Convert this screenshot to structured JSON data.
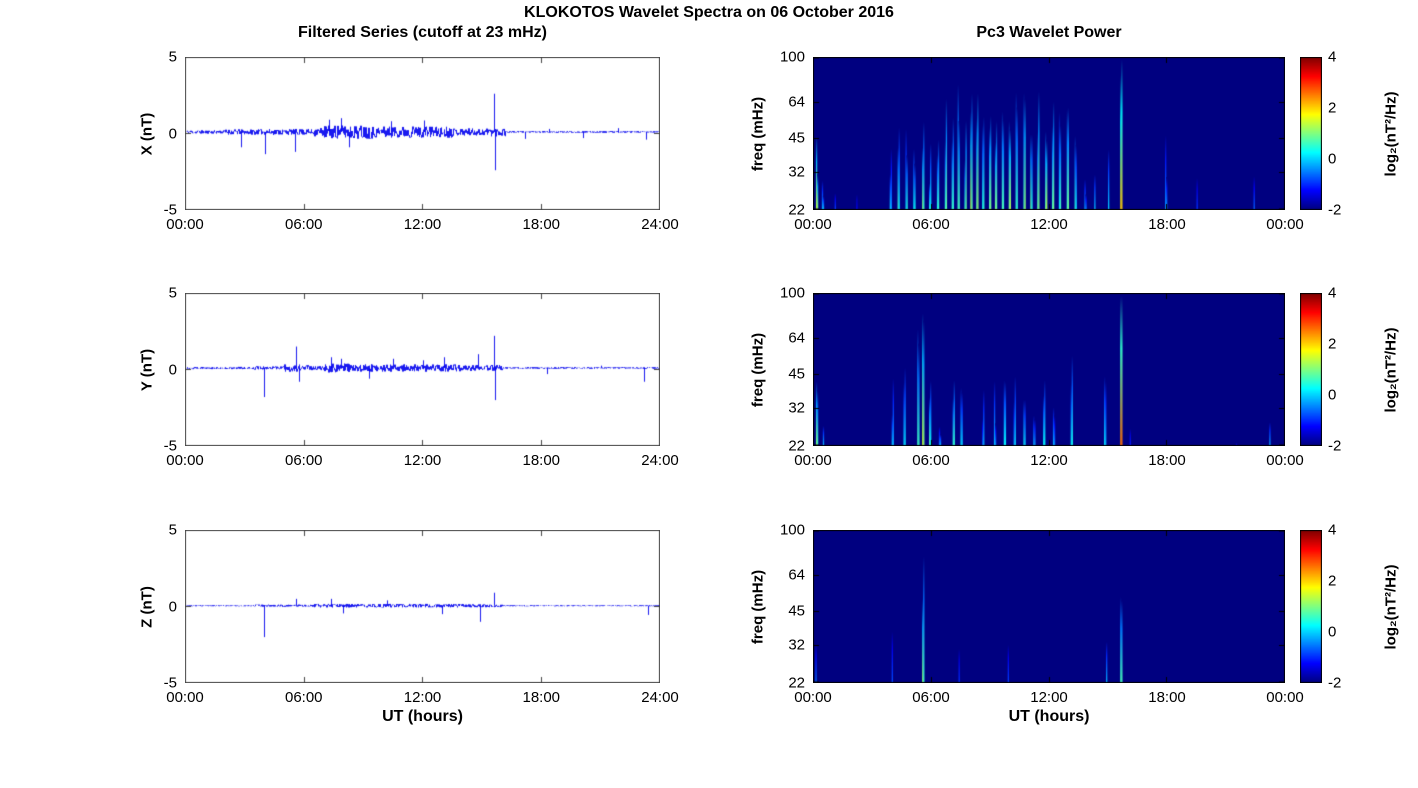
{
  "figure": {
    "title": "KLOKOTOS Wavelet Spectra on 06 October 2016",
    "xlabel": "UT (hours)"
  },
  "colorbar": {
    "label": "log₂(nT²/Hz)",
    "ticks": [
      "4",
      "2",
      "0",
      "-2"
    ],
    "vmin": -2,
    "vmax": 4
  },
  "chart_data": [
    {
      "id": "ts-x",
      "type": "line",
      "title": "Filtered Series (cutoff at 23 mHz)",
      "ylabel": "X (nT)",
      "ylim": [
        -5,
        5
      ],
      "yticks": [
        "5",
        "0",
        "-5"
      ],
      "xlim_hours": [
        0,
        24
      ],
      "xticks": [
        "00:00",
        "06:00",
        "12:00",
        "18:00",
        "24:00"
      ],
      "line_color": "#0000ee",
      "baseline": 0.1,
      "noise_envelope": [
        {
          "t0": 0,
          "t1": 2,
          "amp": 0.12
        },
        {
          "t0": 2,
          "t1": 4,
          "amp": 0.18
        },
        {
          "t0": 4,
          "t1": 6.5,
          "amp": 0.2
        },
        {
          "t0": 6.5,
          "t1": 7,
          "amp": 0.3
        },
        {
          "t0": 7,
          "t1": 9.5,
          "amp": 0.45
        },
        {
          "t0": 9.5,
          "t1": 13.5,
          "amp": 0.38
        },
        {
          "t0": 13.5,
          "t1": 15.3,
          "amp": 0.25
        },
        {
          "t0": 15.3,
          "t1": 16.2,
          "amp": 0.3
        },
        {
          "t0": 16.2,
          "t1": 24,
          "amp": 0.06
        }
      ],
      "spikes": [
        {
          "t": 2.85,
          "v": -0.9
        },
        {
          "t": 4.05,
          "v": -1.35
        },
        {
          "t": 5.55,
          "v": -1.2
        },
        {
          "t": 7.3,
          "v": 0.9
        },
        {
          "t": 7.9,
          "v": 1.0
        },
        {
          "t": 8.3,
          "v": -0.9
        },
        {
          "t": 10.4,
          "v": 0.8
        },
        {
          "t": 12.1,
          "v": 0.85
        },
        {
          "t": 15.62,
          "v": 2.6
        },
        {
          "t": 15.68,
          "v": -2.4
        },
        {
          "t": 17.2,
          "v": -0.35
        },
        {
          "t": 18.4,
          "v": 0.3
        },
        {
          "t": 20.1,
          "v": -0.3
        },
        {
          "t": 21.9,
          "v": 0.35
        },
        {
          "t": 23.3,
          "v": -0.4
        }
      ]
    },
    {
      "id": "ts-y",
      "type": "line",
      "title": "",
      "ylabel": "Y (nT)",
      "ylim": [
        -5,
        5
      ],
      "yticks": [
        "5",
        "0",
        "-5"
      ],
      "xlim_hours": [
        0,
        24
      ],
      "xticks": [
        "00:00",
        "06:00",
        "12:00",
        "18:00",
        "24:00"
      ],
      "line_color": "#0000ee",
      "baseline": 0.1,
      "noise_envelope": [
        {
          "t0": 0,
          "t1": 3.5,
          "amp": 0.08
        },
        {
          "t0": 3.5,
          "t1": 5,
          "amp": 0.12
        },
        {
          "t0": 5,
          "t1": 6.2,
          "amp": 0.25
        },
        {
          "t0": 6.2,
          "t1": 7,
          "amp": 0.15
        },
        {
          "t0": 7,
          "t1": 8.5,
          "amp": 0.3
        },
        {
          "t0": 8.5,
          "t1": 14,
          "amp": 0.25
        },
        {
          "t0": 14,
          "t1": 16,
          "amp": 0.2
        },
        {
          "t0": 16,
          "t1": 24,
          "amp": 0.06
        }
      ],
      "spikes": [
        {
          "t": 4.0,
          "v": -1.8
        },
        {
          "t": 5.6,
          "v": 1.5
        },
        {
          "t": 5.75,
          "v": -0.8
        },
        {
          "t": 7.4,
          "v": 0.8
        },
        {
          "t": 7.9,
          "v": 0.7
        },
        {
          "t": 9.3,
          "v": -0.6
        },
        {
          "t": 10.5,
          "v": 0.7
        },
        {
          "t": 12.0,
          "v": 0.6
        },
        {
          "t": 13.1,
          "v": 0.8
        },
        {
          "t": 14.8,
          "v": 1.0
        },
        {
          "t": 15.62,
          "v": 2.2
        },
        {
          "t": 15.68,
          "v": -2.0
        },
        {
          "t": 18.3,
          "v": -0.3
        },
        {
          "t": 21.0,
          "v": 0.25
        },
        {
          "t": 23.2,
          "v": -0.8
        }
      ]
    },
    {
      "id": "ts-z",
      "type": "line",
      "title": "",
      "ylabel": "Z (nT)",
      "ylim": [
        -5,
        5
      ],
      "yticks": [
        "5",
        "0",
        "-5"
      ],
      "xlim_hours": [
        0,
        24
      ],
      "xticks": [
        "00:00",
        "06:00",
        "12:00",
        "18:00",
        "24:00"
      ],
      "line_color": "#0000ee",
      "baseline": 0.05,
      "noise_envelope": [
        {
          "t0": 0,
          "t1": 3.5,
          "amp": 0.04
        },
        {
          "t0": 3.5,
          "t1": 6.5,
          "amp": 0.08
        },
        {
          "t0": 6.5,
          "t1": 14.5,
          "amp": 0.12
        },
        {
          "t0": 14.5,
          "t1": 16,
          "amp": 0.1
        },
        {
          "t0": 16,
          "t1": 24,
          "amp": 0.04
        }
      ],
      "spikes": [
        {
          "t": 4.0,
          "v": -2.0
        },
        {
          "t": 5.6,
          "v": 0.5
        },
        {
          "t": 7.4,
          "v": 0.5
        },
        {
          "t": 8.0,
          "v": -0.45
        },
        {
          "t": 10.2,
          "v": 0.4
        },
        {
          "t": 13.0,
          "v": -0.5
        },
        {
          "t": 14.9,
          "v": -1.0
        },
        {
          "t": 15.62,
          "v": 0.9
        },
        {
          "t": 23.4,
          "v": -0.55
        }
      ]
    },
    {
      "id": "sp-x",
      "type": "heatmap",
      "title": "Pc3 Wavelet Power",
      "ylabel": "freq (mHz)",
      "flim": [
        22,
        100
      ],
      "yticks": [
        "100",
        "64",
        "45",
        "32",
        "22"
      ],
      "xlim_hours": [
        0,
        24
      ],
      "xticks": [
        "00:00",
        "06:00",
        "12:00",
        "18:00",
        "00:00"
      ],
      "clim": [
        -2,
        4
      ],
      "background_power": -2,
      "events": [
        {
          "t": 0.15,
          "fmax": 40,
          "p": 1.6,
          "w": 0.1
        },
        {
          "t": 0.45,
          "fmax": 30,
          "p": 0.3,
          "w": 0.08
        },
        {
          "t": 1.1,
          "fmax": 26,
          "p": -0.5,
          "w": 0.06
        },
        {
          "t": 2.2,
          "fmax": 25,
          "p": -0.8,
          "w": 0.06
        },
        {
          "t": 3.9,
          "fmax": 34,
          "p": 0.2,
          "w": 0.08
        },
        {
          "t": 4.3,
          "fmax": 45,
          "p": 0.8,
          "w": 0.1
        },
        {
          "t": 4.7,
          "fmax": 38,
          "p": 0.5,
          "w": 0.08
        },
        {
          "t": 5.1,
          "fmax": 42,
          "p": 0.8,
          "w": 0.1
        },
        {
          "t": 5.55,
          "fmax": 50,
          "p": 1.2,
          "w": 0.1
        },
        {
          "t": 5.9,
          "fmax": 40,
          "p": 0.6,
          "w": 0.08
        },
        {
          "t": 6.3,
          "fmax": 46,
          "p": 0.9,
          "w": 0.1
        },
        {
          "t": 6.7,
          "fmax": 52,
          "p": 1.0,
          "w": 0.1
        },
        {
          "t": 7.05,
          "fmax": 58,
          "p": 1.3,
          "w": 0.12
        },
        {
          "t": 7.35,
          "fmax": 62,
          "p": 1.4,
          "w": 0.12
        },
        {
          "t": 7.7,
          "fmax": 50,
          "p": 1.0,
          "w": 0.1
        },
        {
          "t": 8.0,
          "fmax": 66,
          "p": 1.5,
          "w": 0.12
        },
        {
          "t": 8.3,
          "fmax": 56,
          "p": 1.2,
          "w": 0.1
        },
        {
          "t": 8.6,
          "fmax": 60,
          "p": 1.1,
          "w": 0.1
        },
        {
          "t": 8.95,
          "fmax": 52,
          "p": 1.0,
          "w": 0.1
        },
        {
          "t": 9.25,
          "fmax": 58,
          "p": 1.3,
          "w": 0.1
        },
        {
          "t": 9.6,
          "fmax": 48,
          "p": 0.9,
          "w": 0.1
        },
        {
          "t": 9.95,
          "fmax": 62,
          "p": 1.4,
          "w": 0.12
        },
        {
          "t": 10.3,
          "fmax": 55,
          "p": 1.1,
          "w": 0.1
        },
        {
          "t": 10.7,
          "fmax": 64,
          "p": 1.4,
          "w": 0.12
        },
        {
          "t": 11.05,
          "fmax": 52,
          "p": 1.0,
          "w": 0.1
        },
        {
          "t": 11.4,
          "fmax": 58,
          "p": 1.2,
          "w": 0.1
        },
        {
          "t": 11.8,
          "fmax": 62,
          "p": 1.4,
          "w": 0.12
        },
        {
          "t": 12.15,
          "fmax": 52,
          "p": 1.0,
          "w": 0.1
        },
        {
          "t": 12.5,
          "fmax": 46,
          "p": 0.8,
          "w": 0.1
        },
        {
          "t": 12.9,
          "fmax": 55,
          "p": 1.1,
          "w": 0.1
        },
        {
          "t": 13.3,
          "fmax": 42,
          "p": 0.6,
          "w": 0.08
        },
        {
          "t": 13.8,
          "fmax": 36,
          "p": 0.3,
          "w": 0.08
        },
        {
          "t": 14.3,
          "fmax": 30,
          "p": 0.0,
          "w": 0.06
        },
        {
          "t": 15.0,
          "fmax": 32,
          "p": 0.2,
          "w": 0.06
        },
        {
          "t": 15.62,
          "fmax": 97,
          "p": 2.8,
          "w": 0.12
        },
        {
          "t": 16.3,
          "fmax": 26,
          "p": -0.6,
          "w": 0.05
        },
        {
          "t": 17.9,
          "fmax": 38,
          "p": 0.4,
          "w": 0.08
        },
        {
          "t": 19.5,
          "fmax": 24,
          "p": -0.9,
          "w": 0.05
        },
        {
          "t": 22.4,
          "fmax": 30,
          "p": -0.2,
          "w": 0.06
        },
        {
          "t": 23.5,
          "fmax": 24,
          "p": -0.9,
          "w": 0.05
        }
      ]
    },
    {
      "id": "sp-y",
      "type": "heatmap",
      "title": "",
      "ylabel": "freq (mHz)",
      "flim": [
        22,
        100
      ],
      "yticks": [
        "100",
        "64",
        "45",
        "32",
        "22"
      ],
      "xlim_hours": [
        0,
        24
      ],
      "xticks": [
        "00:00",
        "06:00",
        "12:00",
        "18:00",
        "00:00"
      ],
      "clim": [
        -2,
        4
      ],
      "background_power": -2,
      "events": [
        {
          "t": 0.15,
          "fmax": 36,
          "p": 1.2,
          "w": 0.1
        },
        {
          "t": 0.5,
          "fmax": 27,
          "p": 0.0,
          "w": 0.06
        },
        {
          "t": 1.2,
          "fmax": 24,
          "p": -0.8,
          "w": 0.05
        },
        {
          "t": 4.0,
          "fmax": 34,
          "p": 0.3,
          "w": 0.08
        },
        {
          "t": 4.6,
          "fmax": 40,
          "p": 0.5,
          "w": 0.08
        },
        {
          "t": 5.3,
          "fmax": 55,
          "p": 1.0,
          "w": 0.1
        },
        {
          "t": 5.55,
          "fmax": 72,
          "p": 1.6,
          "w": 0.12
        },
        {
          "t": 5.9,
          "fmax": 48,
          "p": 0.8,
          "w": 0.1
        },
        {
          "t": 6.4,
          "fmax": 34,
          "p": 0.2,
          "w": 0.08
        },
        {
          "t": 7.1,
          "fmax": 44,
          "p": 0.7,
          "w": 0.1
        },
        {
          "t": 7.5,
          "fmax": 38,
          "p": 0.4,
          "w": 0.08
        },
        {
          "t": 8.6,
          "fmax": 32,
          "p": 0.1,
          "w": 0.08
        },
        {
          "t": 9.2,
          "fmax": 36,
          "p": 0.3,
          "w": 0.08
        },
        {
          "t": 9.7,
          "fmax": 40,
          "p": 0.4,
          "w": 0.08
        },
        {
          "t": 10.2,
          "fmax": 36,
          "p": 0.3,
          "w": 0.08
        },
        {
          "t": 10.7,
          "fmax": 42,
          "p": 0.5,
          "w": 0.08
        },
        {
          "t": 11.2,
          "fmax": 36,
          "p": 0.3,
          "w": 0.08
        },
        {
          "t": 11.7,
          "fmax": 40,
          "p": 0.4,
          "w": 0.08
        },
        {
          "t": 12.2,
          "fmax": 34,
          "p": 0.2,
          "w": 0.08
        },
        {
          "t": 13.1,
          "fmax": 46,
          "p": 0.8,
          "w": 0.1
        },
        {
          "t": 14.8,
          "fmax": 36,
          "p": 0.4,
          "w": 0.08
        },
        {
          "t": 15.62,
          "fmax": 99,
          "p": 3.2,
          "w": 0.12
        },
        {
          "t": 16.1,
          "fmax": 28,
          "p": -0.3,
          "w": 0.05
        },
        {
          "t": 18.2,
          "fmax": 24,
          "p": -0.8,
          "w": 0.05
        },
        {
          "t": 21.5,
          "fmax": 26,
          "p": -0.6,
          "w": 0.05
        },
        {
          "t": 23.2,
          "fmax": 30,
          "p": -0.2,
          "w": 0.06
        }
      ]
    },
    {
      "id": "sp-z",
      "type": "heatmap",
      "title": "",
      "ylabel": "freq (mHz)",
      "flim": [
        22,
        100
      ],
      "yticks": [
        "100",
        "64",
        "45",
        "32",
        "22"
      ],
      "xlim_hours": [
        0,
        24
      ],
      "xticks": [
        "00:00",
        "06:00",
        "12:00",
        "18:00",
        "00:00"
      ],
      "clim": [
        -2,
        4
      ],
      "background_power": -2,
      "events": [
        {
          "t": 0.12,
          "fmax": 26,
          "p": -0.4,
          "w": 0.05
        },
        {
          "t": 4.0,
          "fmax": 30,
          "p": -0.2,
          "w": 0.05
        },
        {
          "t": 5.55,
          "fmax": 62,
          "p": 1.2,
          "w": 0.08
        },
        {
          "t": 7.4,
          "fmax": 25,
          "p": -0.8,
          "w": 0.05
        },
        {
          "t": 9.9,
          "fmax": 28,
          "p": -0.5,
          "w": 0.05
        },
        {
          "t": 13.0,
          "fmax": 26,
          "p": -0.7,
          "w": 0.05
        },
        {
          "t": 14.9,
          "fmax": 34,
          "p": 0.0,
          "w": 0.06
        },
        {
          "t": 15.62,
          "fmax": 66,
          "p": 1.4,
          "w": 0.08
        },
        {
          "t": 23.4,
          "fmax": 24,
          "p": -0.9,
          "w": 0.05
        }
      ]
    }
  ]
}
